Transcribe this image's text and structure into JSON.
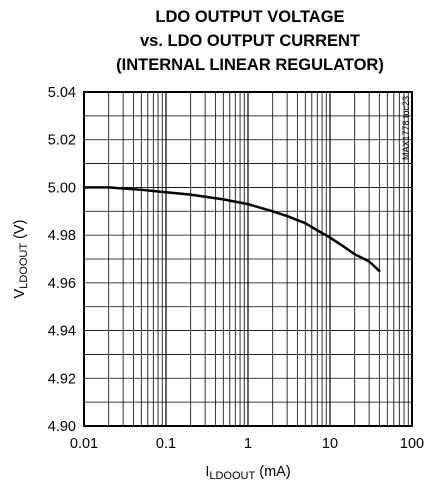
{
  "chart_data": {
    "type": "line",
    "title_lines": [
      "LDO OUTPUT VOLTAGE",
      "vs. LDO OUTPUT CURRENT",
      "(INTERNAL LINEAR REGULATOR)"
    ],
    "xlabel": {
      "prefix": "I",
      "sub": "LDOOUT",
      "suffix": " (mA)"
    },
    "ylabel": {
      "prefix": "V",
      "sub": "LDOOUT",
      "suffix": " (V)"
    },
    "x_scale": "log",
    "xlim": [
      0.01,
      100
    ],
    "ylim": [
      4.9,
      5.04
    ],
    "x_tick_labels": [
      "0.01",
      "0.1",
      "1",
      "10",
      "100"
    ],
    "y_tick_labels": [
      "4.90",
      "4.92",
      "4.94",
      "4.96",
      "4.98",
      "5.00",
      "5.02",
      "5.04"
    ],
    "grid": true,
    "watermark": "MAX1778 toc23",
    "series": [
      {
        "x": [
          0.01,
          0.02,
          0.05,
          0.1,
          0.2,
          0.5,
          1,
          2,
          3,
          5,
          7,
          10,
          15,
          20,
          30,
          40
        ],
        "y": [
          5.0,
          5.0,
          4.999,
          4.998,
          4.997,
          4.995,
          4.993,
          4.99,
          4.988,
          4.985,
          4.982,
          4.979,
          4.975,
          4.972,
          4.969,
          4.965
        ]
      }
    ]
  }
}
